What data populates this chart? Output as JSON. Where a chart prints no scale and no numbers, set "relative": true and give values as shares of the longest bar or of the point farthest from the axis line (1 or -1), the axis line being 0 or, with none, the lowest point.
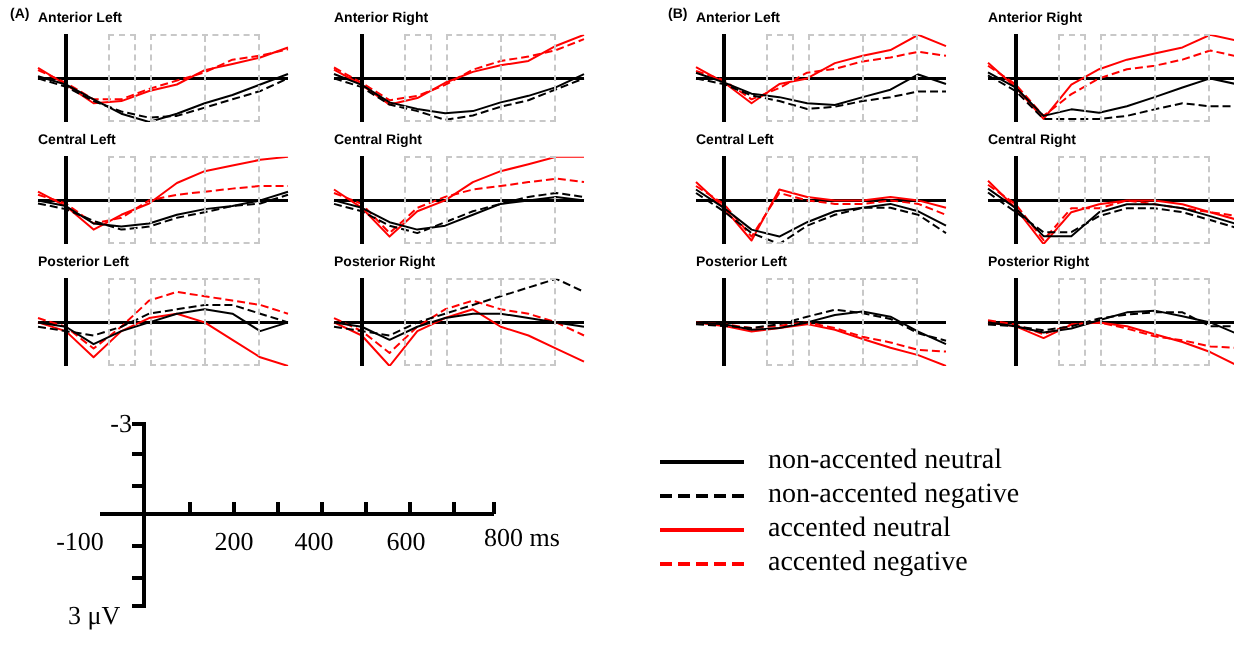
{
  "chart_data": [
    {
      "type": "line",
      "title": "Anterior Left",
      "annotations": [
        "(A)"
      ],
      "categories": [
        null,
        null,
        null,
        null,
        null,
        null,
        null,
        null,
        null,
        null
      ],
      "relative": true,
      "series": [
        {
          "color": "#000000",
          "line_style": "solid",
          "values": [
            0.05,
            -0.14,
            -0.48,
            -0.81,
            -1,
            -0.81,
            -0.57,
            -0.38,
            -0.14,
            0.1
          ]
        },
        {
          "color": "#000000",
          "line_style": "dashed",
          "values": [
            0,
            -0.19,
            -0.52,
            -0.76,
            -0.9,
            -0.86,
            -0.67,
            -0.48,
            -0.29,
            0
          ]
        },
        {
          "color": "#ff0000",
          "line_style": "solid",
          "values": [
            0.24,
            -0.14,
            -0.57,
            -0.52,
            -0.29,
            -0.14,
            0.19,
            0.33,
            0.48,
            0.71
          ]
        },
        {
          "color": "#ff0000",
          "line_style": "dashed",
          "values": [
            0.19,
            -0.1,
            -0.48,
            -0.48,
            -0.24,
            -0.05,
            0.14,
            0.43,
            0.52,
            0.67
          ]
        }
      ]
    },
    {
      "type": "line",
      "title": "Anterior Right",
      "categories": [
        null,
        null,
        null,
        null,
        null,
        null,
        null,
        null,
        null,
        null
      ],
      "relative": true,
      "series": [
        {
          "color": "#000000",
          "line_style": "solid",
          "values": [
            0.1,
            -0.15,
            -0.55,
            -0.7,
            -0.8,
            -0.75,
            -0.55,
            -0.4,
            -0.2,
            0.1
          ]
        },
        {
          "color": "#000000",
          "line_style": "dashed",
          "values": [
            0,
            -0.2,
            -0.6,
            -0.75,
            -0.95,
            -0.85,
            -0.65,
            -0.5,
            -0.25,
            0
          ]
        },
        {
          "color": "#ff0000",
          "line_style": "solid",
          "values": [
            0.2,
            -0.15,
            -0.6,
            -0.45,
            -0.1,
            0.15,
            0.3,
            0.4,
            0.75,
            1
          ]
        },
        {
          "color": "#ff0000",
          "line_style": "dashed",
          "values": [
            0.25,
            -0.1,
            -0.5,
            -0.4,
            -0.15,
            0.2,
            0.4,
            0.5,
            0.65,
            0.9
          ]
        }
      ]
    },
    {
      "type": "line",
      "title": "Anterior Left",
      "annotations": [
        "(B)"
      ],
      "categories": [
        null,
        null,
        null,
        null,
        null,
        null,
        null,
        null,
        null,
        null
      ],
      "relative": true,
      "series": [
        {
          "color": "#000000",
          "line_style": "solid",
          "values": [
            0.13,
            -0.09,
            -0.35,
            -0.43,
            -0.57,
            -0.61,
            -0.43,
            -0.26,
            0.09,
            -0.13
          ]
        },
        {
          "color": "#000000",
          "line_style": "dashed",
          "values": [
            0,
            -0.13,
            -0.39,
            -0.52,
            -0.7,
            -0.65,
            -0.52,
            -0.43,
            -0.3,
            -0.3
          ]
        },
        {
          "color": "#ff0000",
          "line_style": "solid",
          "values": [
            0.26,
            -0.09,
            -0.57,
            -0.13,
            0,
            0.35,
            0.52,
            0.65,
            1,
            0.74
          ]
        },
        {
          "color": "#ff0000",
          "line_style": "dashed",
          "values": [
            0.17,
            -0.04,
            -0.48,
            -0.22,
            0.13,
            0.22,
            0.39,
            0.48,
            0.61,
            0.52
          ]
        }
      ]
    },
    {
      "type": "line",
      "title": "Anterior Right",
      "categories": [
        null,
        null,
        null,
        null,
        null,
        null,
        null,
        null,
        null,
        null
      ],
      "relative": true,
      "series": [
        {
          "color": "#000000",
          "line_style": "solid",
          "values": [
            0.14,
            -0.21,
            -0.86,
            -0.71,
            -0.79,
            -0.64,
            -0.43,
            -0.21,
            0,
            -0.14
          ]
        },
        {
          "color": "#000000",
          "line_style": "dashed",
          "values": [
            0.07,
            -0.29,
            -0.93,
            -0.93,
            -0.93,
            -0.86,
            -0.71,
            -0.57,
            -0.64,
            -0.64
          ]
        },
        {
          "color": "#ff0000",
          "line_style": "solid",
          "values": [
            0.36,
            -0.21,
            -0.93,
            -0.14,
            0.21,
            0.43,
            0.57,
            0.71,
            1,
            0.86
          ]
        },
        {
          "color": "#ff0000",
          "line_style": "dashed",
          "values": [
            0.29,
            -0.14,
            -0.86,
            -0.36,
            0,
            0.21,
            0.29,
            0.43,
            0.64,
            0.5
          ]
        }
      ]
    },
    {
      "type": "line",
      "title": "Central Left",
      "categories": [
        null,
        null,
        null,
        null,
        null,
        null,
        null,
        null,
        null,
        null
      ],
      "relative": true,
      "series": [
        {
          "color": "#000000",
          "line_style": "solid",
          "values": [
            0,
            -0.13,
            -0.53,
            -0.6,
            -0.53,
            -0.33,
            -0.2,
            -0.13,
            0,
            0.2
          ]
        },
        {
          "color": "#000000",
          "line_style": "dashed",
          "values": [
            -0.07,
            -0.2,
            -0.47,
            -0.67,
            -0.6,
            -0.4,
            -0.27,
            -0.13,
            -0.07,
            0.13
          ]
        },
        {
          "color": "#ff0000",
          "line_style": "solid",
          "values": [
            0.2,
            -0.13,
            -0.67,
            -0.33,
            -0.07,
            0.4,
            0.67,
            0.8,
            0.93,
            1
          ]
        },
        {
          "color": "#ff0000",
          "line_style": "dashed",
          "values": [
            0.13,
            -0.07,
            -0.53,
            -0.4,
            0,
            0.13,
            0.2,
            0.27,
            0.33,
            0.33
          ]
        }
      ]
    },
    {
      "type": "line",
      "title": "Central Right",
      "categories": [
        null,
        null,
        null,
        null,
        null,
        null,
        null,
        null,
        null,
        null
      ],
      "relative": true,
      "series": [
        {
          "color": "#000000",
          "line_style": "solid",
          "values": [
            0,
            -0.17,
            -0.5,
            -0.67,
            -0.58,
            -0.33,
            -0.08,
            0,
            0.08,
            0
          ]
        },
        {
          "color": "#000000",
          "line_style": "dashed",
          "values": [
            -0.08,
            -0.25,
            -0.58,
            -0.75,
            -0.5,
            -0.25,
            -0.08,
            0.08,
            0.17,
            0.08
          ]
        },
        {
          "color": "#ff0000",
          "line_style": "solid",
          "values": [
            0.25,
            -0.17,
            -0.83,
            -0.25,
            0,
            0.42,
            0.67,
            0.83,
            1,
            1
          ]
        },
        {
          "color": "#ff0000",
          "line_style": "dashed",
          "values": [
            0.17,
            -0.08,
            -0.75,
            -0.17,
            0.08,
            0.25,
            0.33,
            0.42,
            0.5,
            0.42
          ]
        }
      ]
    },
    {
      "type": "line",
      "title": "Central Left",
      "categories": [
        null,
        null,
        null,
        null,
        null,
        null,
        null,
        null,
        null,
        null
      ],
      "relative": true,
      "series": [
        {
          "color": "#000000",
          "line_style": "solid",
          "values": [
            0.25,
            -0.17,
            -0.67,
            -0.83,
            -0.5,
            -0.25,
            -0.17,
            -0.08,
            -0.25,
            -0.58
          ]
        },
        {
          "color": "#000000",
          "line_style": "dashed",
          "values": [
            0.17,
            -0.25,
            -0.75,
            -1,
            -0.58,
            -0.33,
            -0.17,
            -0.17,
            -0.33,
            -0.75
          ]
        },
        {
          "color": "#ff0000",
          "line_style": "solid",
          "values": [
            0.42,
            -0.17,
            -0.92,
            0.25,
            0.08,
            0,
            0,
            0.08,
            0,
            -0.17
          ]
        },
        {
          "color": "#ff0000",
          "line_style": "dashed",
          "values": [
            0.33,
            -0.08,
            -0.83,
            0.17,
            0,
            -0.08,
            -0.08,
            0,
            -0.08,
            -0.33
          ]
        }
      ]
    },
    {
      "type": "line",
      "title": "Central Right",
      "categories": [
        null,
        null,
        null,
        null,
        null,
        null,
        null,
        null,
        null,
        null
      ],
      "relative": true,
      "series": [
        {
          "color": "#000000",
          "line_style": "solid",
          "values": [
            0.27,
            -0.18,
            -0.82,
            -0.82,
            -0.27,
            -0.09,
            -0.09,
            -0.18,
            -0.36,
            -0.55
          ]
        },
        {
          "color": "#000000",
          "line_style": "dashed",
          "values": [
            0.18,
            -0.27,
            -0.73,
            -0.73,
            -0.36,
            -0.18,
            -0.18,
            -0.27,
            -0.45,
            -0.64
          ]
        },
        {
          "color": "#ff0000",
          "line_style": "solid",
          "values": [
            0.45,
            -0.18,
            -1,
            -0.27,
            -0.09,
            0,
            0,
            -0.09,
            -0.27,
            -0.45
          ]
        },
        {
          "color": "#ff0000",
          "line_style": "dashed",
          "values": [
            0.36,
            -0.09,
            -0.91,
            -0.18,
            -0.18,
            0,
            -0.09,
            -0.18,
            -0.27,
            -0.36
          ]
        }
      ]
    },
    {
      "type": "line",
      "title": "Posterior Left",
      "categories": [
        null,
        null,
        null,
        null,
        null,
        null,
        null,
        null,
        null,
        null
      ],
      "relative": true,
      "series": [
        {
          "color": "#000000",
          "line_style": "solid",
          "values": [
            0,
            -0.1,
            -0.5,
            -0.2,
            0,
            0.2,
            0.3,
            0.2,
            -0.2,
            0
          ]
        },
        {
          "color": "#000000",
          "line_style": "dashed",
          "values": [
            -0.1,
            -0.2,
            -0.3,
            -0.1,
            0.2,
            0.3,
            0.4,
            0.4,
            0.2,
            0
          ]
        },
        {
          "color": "#ff0000",
          "line_style": "solid",
          "values": [
            0,
            -0.2,
            -0.8,
            -0.2,
            0.1,
            0.2,
            0,
            -0.4,
            -0.8,
            -1
          ]
        },
        {
          "color": "#ff0000",
          "line_style": "dashed",
          "values": [
            0.1,
            -0.1,
            -0.6,
            -0.1,
            0.5,
            0.7,
            0.6,
            0.5,
            0.4,
            0.2
          ]
        }
      ]
    },
    {
      "type": "line",
      "title": "Posterior Right",
      "categories": [
        null,
        null,
        null,
        null,
        null,
        null,
        null,
        null,
        null,
        null
      ],
      "relative": true,
      "series": [
        {
          "color": "#000000",
          "line_style": "solid",
          "values": [
            0,
            -0.1,
            -0.4,
            -0.1,
            0.1,
            0.2,
            0.2,
            0.1,
            0,
            -0.1
          ]
        },
        {
          "color": "#000000",
          "line_style": "dashed",
          "values": [
            -0.1,
            -0.2,
            -0.3,
            0,
            0.2,
            0.4,
            0.6,
            0.8,
            1,
            0.7
          ]
        },
        {
          "color": "#ff0000",
          "line_style": "solid",
          "values": [
            0,
            -0.3,
            -1,
            -0.2,
            0.1,
            0.3,
            -0.1,
            -0.3,
            -0.6,
            -0.9
          ]
        },
        {
          "color": "#ff0000",
          "line_style": "dashed",
          "values": [
            0.1,
            -0.2,
            -0.7,
            -0.1,
            0.3,
            0.5,
            0.3,
            0.2,
            0,
            -0.3
          ]
        }
      ]
    },
    {
      "type": "line",
      "title": "Posterior Left",
      "categories": [
        null,
        null,
        null,
        null,
        null,
        null,
        null,
        null,
        null,
        null
      ],
      "relative": true,
      "series": [
        {
          "color": "#000000",
          "line_style": "solid",
          "values": [
            0,
            -0.04,
            -0.17,
            -0.13,
            0,
            0.17,
            0.25,
            0.13,
            -0.21,
            -0.5
          ]
        },
        {
          "color": "#000000",
          "line_style": "dashed",
          "values": [
            -0.04,
            -0.08,
            -0.13,
            -0.04,
            0.13,
            0.29,
            0.21,
            0.08,
            -0.25,
            -0.42
          ]
        },
        {
          "color": "#ff0000",
          "line_style": "solid",
          "values": [
            0,
            -0.08,
            -0.21,
            -0.13,
            -0.04,
            -0.17,
            -0.38,
            -0.58,
            -0.75,
            -1
          ]
        },
        {
          "color": "#ff0000",
          "line_style": "dashed",
          "values": [
            0,
            -0.04,
            -0.13,
            -0.08,
            0,
            -0.13,
            -0.33,
            -0.46,
            -0.63,
            -0.67
          ]
        }
      ]
    },
    {
      "type": "line",
      "title": "Posterior Right",
      "categories": [
        null,
        null,
        null,
        null,
        null,
        null,
        null,
        null,
        null,
        null
      ],
      "relative": true,
      "series": [
        {
          "color": "#000000",
          "line_style": "solid",
          "values": [
            0,
            -0.09,
            -0.23,
            -0.14,
            0.05,
            0.23,
            0.27,
            0.14,
            0,
            -0.27
          ]
        },
        {
          "color": "#000000",
          "line_style": "dashed",
          "values": [
            -0.05,
            -0.09,
            -0.18,
            -0.09,
            0.09,
            0.18,
            0.23,
            0.23,
            -0.09,
            -0.09
          ]
        },
        {
          "color": "#ff0000",
          "line_style": "solid",
          "values": [
            0,
            -0.09,
            -0.36,
            -0.05,
            0,
            -0.09,
            -0.27,
            -0.45,
            -0.68,
            -1
          ]
        },
        {
          "color": "#ff0000",
          "line_style": "dashed",
          "values": [
            0.05,
            -0.05,
            -0.27,
            -0.05,
            0,
            -0.14,
            -0.32,
            -0.41,
            -0.55,
            -0.59
          ]
        }
      ]
    },
    {
      "type": "other",
      "annotations": [
        "-3",
        "-100",
        "200",
        "400",
        "600",
        "800 ms",
        "3 μV"
      ],
      "legend": "right",
      "series": [
        {
          "name": "non-accented neutral",
          "color": "#000000",
          "line_style": "solid"
        },
        {
          "name": "non-accented negative",
          "color": "#000000",
          "line_style": "dashed"
        },
        {
          "name": "accented neutral",
          "color": "#ff0000",
          "line_style": "solid"
        },
        {
          "name": "accented negative",
          "color": "#ff0000",
          "line_style": "dashed"
        }
      ]
    }
  ]
}
